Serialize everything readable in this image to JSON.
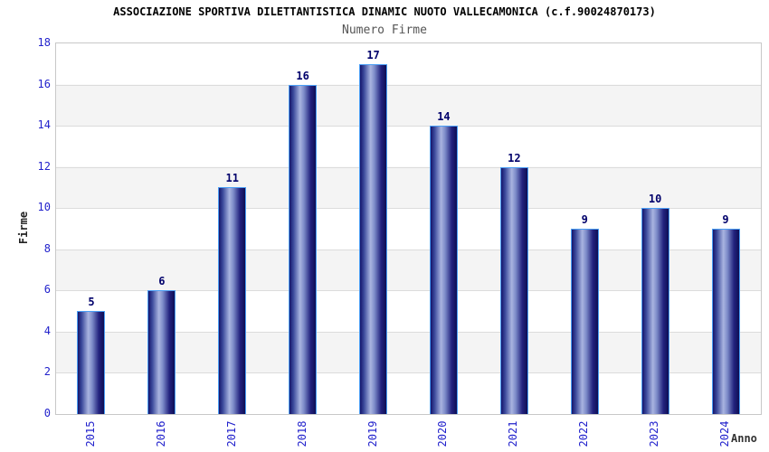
{
  "chart_data": {
    "type": "bar",
    "title": "ASSOCIAZIONE SPORTIVA DILETTANTISTICA DINAMIC NUOTO VALLECAMONICA (c.f.90024870173)",
    "subtitle": "Numero Firme",
    "xlabel": "Anno",
    "ylabel": "Firme",
    "categories": [
      "2015",
      "2016",
      "2017",
      "2018",
      "2019",
      "2020",
      "2021",
      "2022",
      "2023",
      "2024"
    ],
    "values": [
      5,
      6,
      11,
      16,
      17,
      14,
      12,
      9,
      10,
      9
    ],
    "ylim": [
      0,
      18
    ],
    "ytick_step": 2,
    "legend": "none",
    "grid": "horizontal-bands",
    "colors": {
      "axis_text": "#2222cc",
      "value_label": "#00006b",
      "bar_dark": "#15156b",
      "bar_mid": "#3c4a9c",
      "bar_light": "#a9b4e0",
      "bar_dark_end": "#0e0e54",
      "bar_border": "#4a9ef5",
      "band_gray": "#f4f4f4",
      "band_white": "#ffffff",
      "grid_line": "#dcdcdc",
      "plot_border": "#c8c8c8",
      "title_color": "#000000",
      "subtitle_color": "#555555",
      "axis_title_color": "#333333"
    }
  }
}
